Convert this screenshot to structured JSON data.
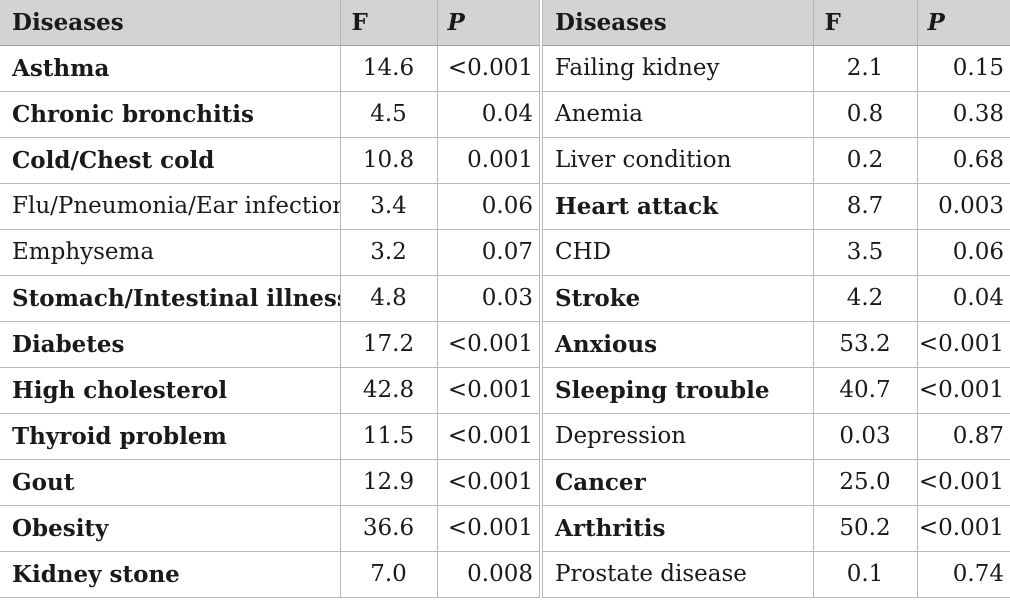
{
  "headers": {
    "diseases": "Diseases",
    "f": "F",
    "p": "P"
  },
  "rows": [
    {
      "left": {
        "name": "Asthma",
        "f": "14.6",
        "p": "<0.001",
        "bold": true
      },
      "right": {
        "name": "Failing kidney",
        "f": "2.1",
        "p": "0.15",
        "bold": false
      }
    },
    {
      "left": {
        "name": "Chronic bronchitis",
        "f": "4.5",
        "p": "0.04",
        "bold": true
      },
      "right": {
        "name": "Anemia",
        "f": "0.8",
        "p": "0.38",
        "bold": false
      }
    },
    {
      "left": {
        "name": "Cold/Chest cold",
        "f": "10.8",
        "p": "0.001",
        "bold": true
      },
      "right": {
        "name": "Liver condition",
        "f": "0.2",
        "p": "0.68",
        "bold": false
      }
    },
    {
      "left": {
        "name": "Flu/Pneumonia/Ear infection",
        "f": "3.4",
        "p": "0.06",
        "bold": false
      },
      "right": {
        "name": "Heart attack",
        "f": "8.7",
        "p": "0.003",
        "bold": true
      }
    },
    {
      "left": {
        "name": "Emphysema",
        "f": "3.2",
        "p": "0.07",
        "bold": false
      },
      "right": {
        "name": "CHD",
        "f": "3.5",
        "p": "0.06",
        "bold": false
      }
    },
    {
      "left": {
        "name": "Stomach/Intestinal illness",
        "f": "4.8",
        "p": "0.03",
        "bold": true
      },
      "right": {
        "name": "Stroke",
        "f": "4.2",
        "p": "0.04",
        "bold": true
      }
    },
    {
      "left": {
        "name": "Diabetes",
        "f": "17.2",
        "p": "<0.001",
        "bold": true
      },
      "right": {
        "name": "Anxious",
        "f": "53.2",
        "p": "<0.001",
        "bold": true
      }
    },
    {
      "left": {
        "name": "High cholesterol",
        "f": "42.8",
        "p": "<0.001",
        "bold": true
      },
      "right": {
        "name": "Sleeping trouble",
        "f": "40.7",
        "p": "<0.001",
        "bold": true
      }
    },
    {
      "left": {
        "name": "Thyroid problem",
        "f": "11.5",
        "p": "<0.001",
        "bold": true
      },
      "right": {
        "name": "Depression",
        "f": "0.03",
        "p": "0.87",
        "bold": false
      }
    },
    {
      "left": {
        "name": "Gout",
        "f": "12.9",
        "p": "<0.001",
        "bold": true
      },
      "right": {
        "name": "Cancer",
        "f": "25.0",
        "p": "<0.001",
        "bold": true
      }
    },
    {
      "left": {
        "name": "Obesity",
        "f": "36.6",
        "p": "<0.001",
        "bold": true
      },
      "right": {
        "name": "Arthritis",
        "f": "50.2",
        "p": "<0.001",
        "bold": true
      }
    },
    {
      "left": {
        "name": "Kidney stone",
        "f": "7.0",
        "p": "0.008",
        "bold": true
      },
      "right": {
        "name": "Prostate disease",
        "f": "0.1",
        "p": "0.74",
        "bold": false
      }
    }
  ]
}
